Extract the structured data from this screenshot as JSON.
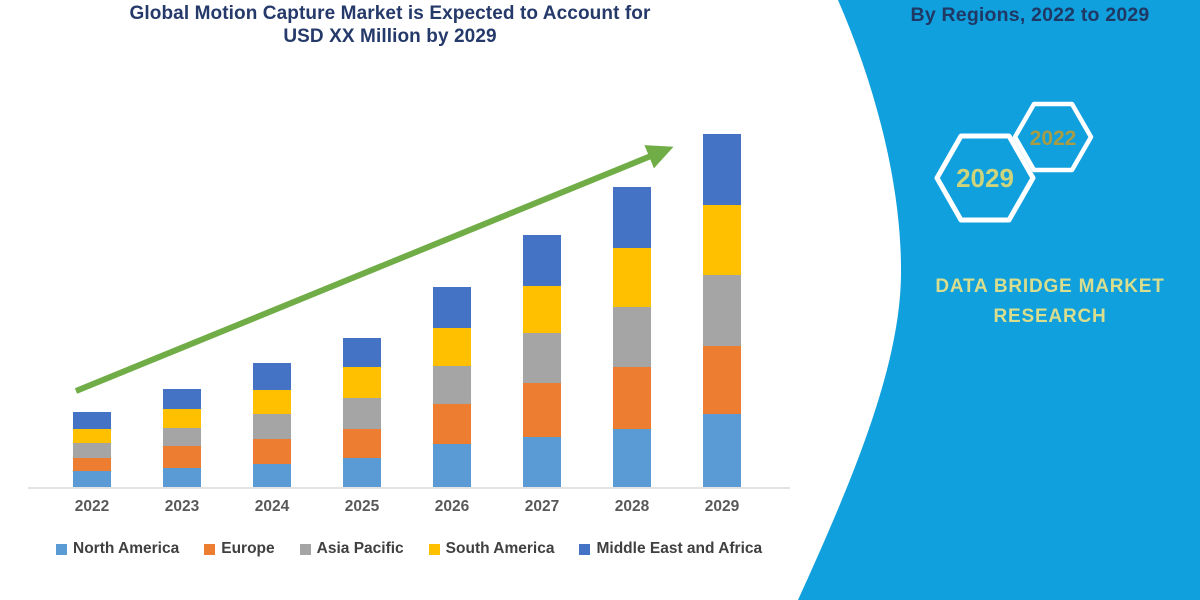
{
  "chart": {
    "title_line1": "Global Motion Capture Market is Expected to Account for",
    "title_line2": "USD XX Million by 2029",
    "title_color": "#253a6a",
    "axis_line_color": "#e3e3e3",
    "x_label_color": "#595959",
    "legend_text_color": "#404040"
  },
  "chart_data": {
    "type": "bar",
    "stacked": true,
    "title": "Global Motion Capture Market is Expected to Account for USD XX Million by 2029",
    "xlabel": "",
    "ylabel": "",
    "y_axis_shown": false,
    "grid": false,
    "legend_position": "bottom",
    "categories": [
      "2022",
      "2023",
      "2024",
      "2025",
      "2026",
      "2027",
      "2028",
      "2029"
    ],
    "series": [
      {
        "name": "North America",
        "color": "#5B9BD5",
        "values": [
          16,
          19,
          23,
          29,
          43,
          50,
          58,
          73
        ]
      },
      {
        "name": "Europe",
        "color": "#ED7D31",
        "values": [
          13,
          22,
          25,
          29,
          40,
          54,
          62,
          68
        ]
      },
      {
        "name": "Asia Pacific",
        "color": "#A5A5A5",
        "values": [
          15,
          18,
          25,
          31,
          38,
          50,
          60,
          71
        ]
      },
      {
        "name": "South America",
        "color": "#FFC000",
        "values": [
          14,
          19,
          24,
          31,
          38,
          47,
          59,
          70
        ]
      },
      {
        "name": "Middle East and Africa",
        "color": "#4472C4",
        "values": [
          17,
          20,
          27,
          29,
          41,
          51,
          61,
          71
        ]
      }
    ],
    "totals": [
      75,
      98,
      124,
      149,
      200,
      252,
      300,
      353
    ],
    "ylim": [
      0,
      370
    ],
    "value_note": "No y-axis shown; values are relative units read from bar pixel heights",
    "trend_arrow": {
      "shown": true,
      "color": "#70AD47",
      "direction": "up-right"
    }
  },
  "sidebar": {
    "heading": "By Regions, 2022 to 2029",
    "bg_color": "#0fa0dd",
    "heading_color": "#1f3864",
    "hexagons": [
      {
        "label": "2029",
        "text_color": "#cdd47c"
      },
      {
        "label": "2022",
        "text_color": "#a89c45"
      }
    ],
    "brand_line1": "DATA BRIDGE MARKET",
    "brand_line2": "RESEARCH",
    "brand_color": "#d8de8d"
  }
}
